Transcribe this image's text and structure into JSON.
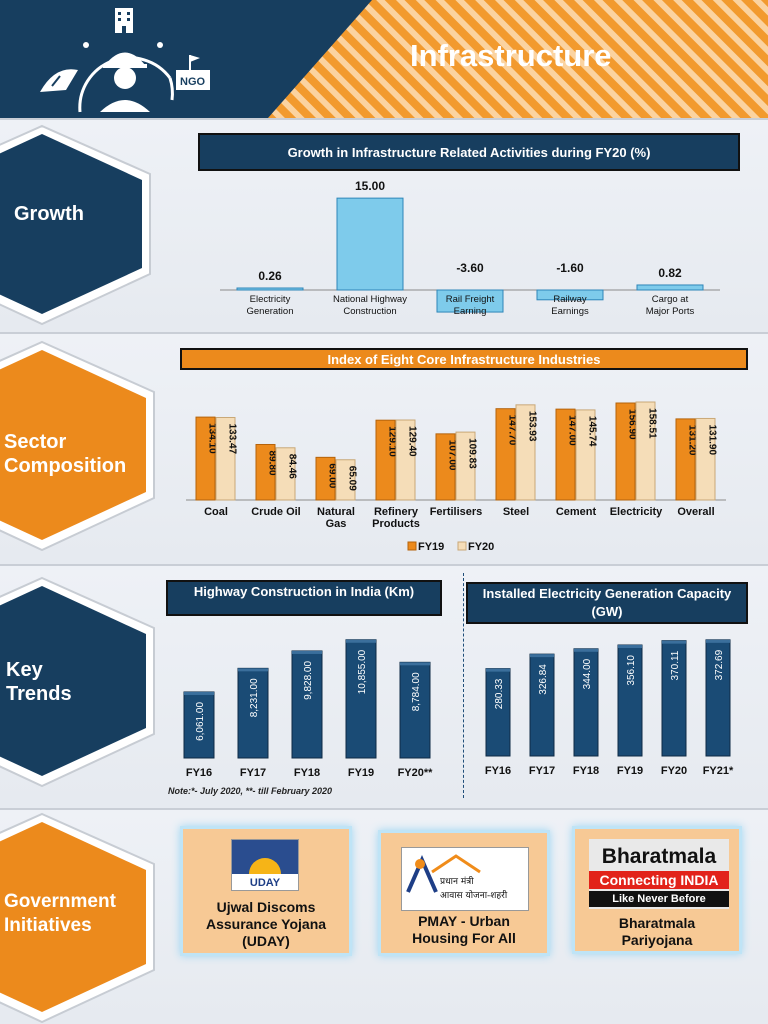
{
  "header": {
    "title": "Infrastructure",
    "ngo_label": "NGO"
  },
  "sections": [
    {
      "label_lines": [
        "Growth"
      ]
    },
    {
      "label_lines": [
        "Sector",
        "Composition"
      ]
    },
    {
      "label_lines": [
        "Key",
        "Trends"
      ]
    },
    {
      "label_lines": [
        "Government",
        "Initiatives"
      ]
    }
  ],
  "colors": {
    "navy": "#173e5f",
    "orange": "#ec8a1c",
    "light_blue": "#7ecbeb",
    "beige": "#f5ddb8",
    "bar_navy": "#1a4b75"
  },
  "chart_data": [
    {
      "id": "growth",
      "type": "bar",
      "title": "Growth in Infrastructure Related Activities during FY20 (%)",
      "categories": [
        [
          "Electricity",
          "Generation"
        ],
        [
          "National Highway",
          "Construction"
        ],
        [
          "Rail Freight",
          "Earning"
        ],
        [
          "Railway",
          "Earnings"
        ],
        [
          "Cargo at",
          "Major Ports"
        ]
      ],
      "values": [
        0.26,
        15.0,
        -3.6,
        -1.6,
        0.82
      ],
      "labels": [
        "0.26",
        "15.00",
        "-3.60",
        "-1.60",
        "0.82"
      ],
      "ylim": [
        -4,
        16
      ]
    },
    {
      "id": "core",
      "type": "bar",
      "title": "Index of Eight Core Infrastructure Industries",
      "categories": [
        [
          "Coal"
        ],
        [
          "Crude Oil"
        ],
        [
          "Natural",
          "Gas"
        ],
        [
          "Refinery",
          "Products"
        ],
        [
          "Fertilisers"
        ],
        [
          "Steel"
        ],
        [
          "Cement"
        ],
        [
          "Electricity"
        ],
        [
          "Overall"
        ]
      ],
      "series": [
        {
          "name": "FY19",
          "values": [
            134.1,
            89.8,
            69.0,
            129.1,
            107.0,
            147.7,
            147.0,
            156.9,
            131.2
          ],
          "labels": [
            "134.10",
            "89.80",
            "69.00",
            "129.10",
            "107.00",
            "147.70",
            "147.00",
            "156.90",
            "131.20"
          ]
        },
        {
          "name": "FY20",
          "values": [
            133.47,
            84.46,
            65.09,
            129.4,
            109.83,
            153.93,
            145.74,
            158.51,
            131.9
          ],
          "labels": [
            "133.47",
            "84.46",
            "65.09",
            "129.40",
            "109.83",
            "153.93",
            "145.74",
            "158.51",
            "131.90"
          ]
        }
      ],
      "ylim": [
        0,
        165
      ]
    },
    {
      "id": "highway",
      "type": "bar",
      "title": "Highway Construction in India (Km)",
      "categories": [
        "FY16",
        "FY17",
        "FY18",
        "FY19",
        "FY20**"
      ],
      "values": [
        6061,
        8231,
        9828,
        10855,
        8784
      ],
      "labels": [
        "6,061.00",
        "8,231.00",
        "9,828.00",
        "10,855.00",
        "8,784.00"
      ],
      "ylim": [
        0,
        11200
      ]
    },
    {
      "id": "power",
      "type": "bar",
      "title": "Installed Electricity Generation Capacity (GW)",
      "categories": [
        "FY16",
        "FY17",
        "FY18",
        "FY19",
        "FY20",
        "FY21*"
      ],
      "values": [
        280.33,
        326.84,
        344.0,
        356.1,
        370.11,
        372.69
      ],
      "labels": [
        "280.33",
        "326.84",
        "344.00",
        "356.10",
        "370.11",
        "372.69"
      ],
      "ylim": [
        0,
        385
      ]
    }
  ],
  "note": "Note:*- July 2020, **- till February 2020",
  "initiatives": [
    {
      "name_lines": [
        "Ujwal Discoms",
        "Assurance Yojana",
        "(UDAY)"
      ],
      "logo_text": "UDAY"
    },
    {
      "name_lines": [
        "PMAY - Urban",
        "Housing For All"
      ],
      "logo_text_1": "प्रधान मंत्री",
      "logo_text_2": "आवास योजना-शहरी"
    },
    {
      "name_lines": [
        "Bharatmala",
        "Pariyojana"
      ],
      "logo_line_1": "Bharatmala",
      "logo_line_2": "Connecting INDIA",
      "logo_line_3": "Like Never Before"
    }
  ]
}
